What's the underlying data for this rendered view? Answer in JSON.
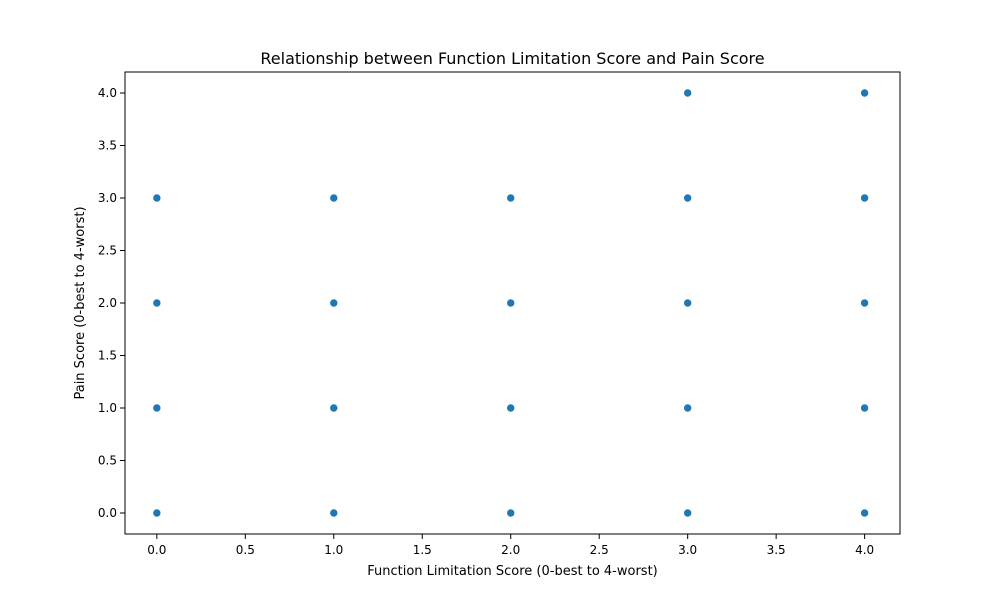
{
  "chart_data": {
    "type": "scatter",
    "title": "Relationship between Function Limitation Score and Pain Score",
    "xlabel": "Function Limitation Score (0-best to 4-worst)",
    "ylabel": "Pain Score (0-best to 4-worst)",
    "xlim": [
      -0.18,
      4.2
    ],
    "ylim": [
      -0.2,
      4.2
    ],
    "x_ticks": [
      0.0,
      0.5,
      1.0,
      1.5,
      2.0,
      2.5,
      3.0,
      3.5,
      4.0
    ],
    "x_tick_labels": [
      "0.0",
      "0.5",
      "1.0",
      "1.5",
      "2.0",
      "2.5",
      "3.0",
      "3.5",
      "4.0"
    ],
    "y_ticks": [
      0.0,
      0.5,
      1.0,
      1.5,
      2.0,
      2.5,
      3.0,
      3.5,
      4.0
    ],
    "y_tick_labels": [
      "0.0",
      "0.5",
      "1.0",
      "1.5",
      "2.0",
      "2.5",
      "3.0",
      "3.5",
      "4.0"
    ],
    "grid": false,
    "marker_color": "#1f77b4",
    "points": [
      {
        "x": 0,
        "y": 0
      },
      {
        "x": 0,
        "y": 1
      },
      {
        "x": 0,
        "y": 2
      },
      {
        "x": 0,
        "y": 3
      },
      {
        "x": 1,
        "y": 0
      },
      {
        "x": 1,
        "y": 1
      },
      {
        "x": 1,
        "y": 2
      },
      {
        "x": 1,
        "y": 3
      },
      {
        "x": 2,
        "y": 0
      },
      {
        "x": 2,
        "y": 1
      },
      {
        "x": 2,
        "y": 2
      },
      {
        "x": 2,
        "y": 3
      },
      {
        "x": 3,
        "y": 0
      },
      {
        "x": 3,
        "y": 1
      },
      {
        "x": 3,
        "y": 2
      },
      {
        "x": 3,
        "y": 3
      },
      {
        "x": 3,
        "y": 4
      },
      {
        "x": 4,
        "y": 0
      },
      {
        "x": 4,
        "y": 1
      },
      {
        "x": 4,
        "y": 2
      },
      {
        "x": 4,
        "y": 3
      },
      {
        "x": 4,
        "y": 4
      }
    ]
  }
}
